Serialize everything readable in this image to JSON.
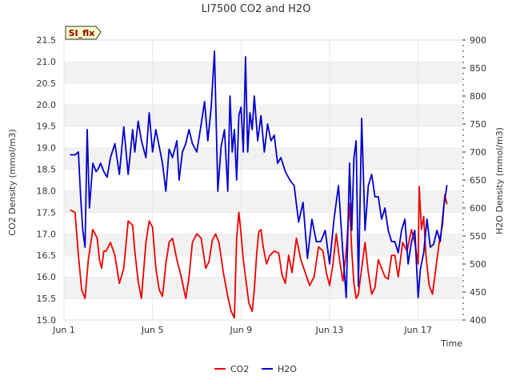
{
  "chart_data": {
    "type": "line",
    "title": "LI7500 CO2 and H2O",
    "xlabel": "Time",
    "ylabel": "CO2 Density (mmol/m3)",
    "y2label": "H2O Density (mmol/m3)",
    "badge": "SI_flx",
    "x_range": [
      0.0,
      18.0
    ],
    "x_ticks": [
      {
        "value": 0.0,
        "label": "Jun 1"
      },
      {
        "value": 4.0,
        "label": "Jun 5"
      },
      {
        "value": 8.0,
        "label": "Jun 9"
      },
      {
        "value": 12.0,
        "label": "Jun 13"
      },
      {
        "value": 16.0,
        "label": "Jun 17"
      }
    ],
    "ylim": [
      15.0,
      21.5
    ],
    "y_ticks": [
      "15.0",
      "15.5",
      "16.0",
      "16.5",
      "17.0",
      "17.5",
      "18.0",
      "18.5",
      "19.0",
      "19.5",
      "20.0",
      "20.5",
      "21.0",
      "21.5"
    ],
    "y2lim": [
      400,
      900
    ],
    "y2_ticks": [
      "400",
      "450",
      "500",
      "550",
      "600",
      "650",
      "700",
      "750",
      "800",
      "850",
      "900"
    ],
    "legend_position": "bottom-center",
    "series": [
      {
        "name": "CO2",
        "axis": "left",
        "color": "#ee0000",
        "x": [
          0.3,
          0.5,
          0.65,
          0.8,
          0.95,
          1.1,
          1.3,
          1.5,
          1.6,
          1.7,
          1.8,
          1.9,
          2.1,
          2.3,
          2.5,
          2.7,
          2.9,
          3.1,
          3.2,
          3.35,
          3.5,
          3.7,
          3.85,
          4.0,
          4.15,
          4.3,
          4.45,
          4.6,
          4.75,
          4.9,
          5.1,
          5.3,
          5.5,
          5.65,
          5.8,
          6.0,
          6.2,
          6.4,
          6.55,
          6.7,
          6.85,
          7.0,
          7.2,
          7.4,
          7.55,
          7.7,
          7.8,
          7.9,
          8.0,
          8.1,
          8.2,
          8.35,
          8.5,
          8.6,
          8.7,
          8.8,
          8.9,
          9.0,
          9.15,
          9.3,
          9.5,
          9.7,
          9.85,
          10.0,
          10.15,
          10.3,
          10.5,
          10.7,
          10.9,
          11.1,
          11.3,
          11.5,
          11.7,
          11.85,
          12.0,
          12.15,
          12.3,
          12.45,
          12.6,
          12.75,
          12.9,
          13.0,
          13.1,
          13.2,
          13.3,
          13.45,
          13.6,
          13.75,
          13.9,
          14.05,
          14.2,
          14.35,
          14.5,
          14.65,
          14.8,
          14.95,
          15.1,
          15.3,
          15.5,
          15.7,
          15.85,
          16.0,
          16.05,
          16.15,
          16.25,
          16.35,
          16.5,
          16.65,
          16.8,
          16.95,
          17.1,
          17.2,
          17.3
        ],
        "values": [
          17.55,
          17.5,
          16.5,
          15.7,
          15.5,
          16.4,
          17.1,
          16.9,
          16.4,
          16.2,
          16.6,
          16.6,
          16.8,
          16.5,
          15.85,
          16.2,
          17.3,
          17.2,
          16.6,
          15.9,
          15.5,
          16.8,
          17.3,
          17.15,
          16.2,
          15.7,
          15.55,
          16.3,
          16.8,
          16.9,
          16.4,
          16.0,
          15.5,
          16.0,
          16.8,
          17.0,
          16.9,
          16.2,
          16.35,
          16.85,
          17.0,
          16.8,
          16.1,
          15.55,
          15.2,
          15.05,
          16.9,
          17.5,
          17.0,
          16.4,
          16.0,
          15.4,
          15.2,
          15.7,
          16.5,
          17.05,
          17.1,
          16.7,
          16.3,
          16.5,
          16.6,
          16.55,
          16.05,
          15.85,
          16.5,
          16.1,
          16.9,
          16.4,
          16.1,
          15.8,
          16.0,
          16.7,
          16.6,
          16.1,
          15.8,
          16.3,
          17.0,
          16.4,
          15.9,
          16.6,
          17.7,
          16.6,
          15.85,
          15.5,
          15.6,
          16.2,
          16.8,
          16.1,
          15.6,
          15.75,
          16.4,
          16.2,
          16.0,
          15.95,
          16.5,
          16.5,
          16.0,
          16.8,
          16.6,
          17.1,
          16.8,
          16.3,
          18.1,
          17.1,
          17.4,
          16.5,
          15.8,
          15.6,
          16.2,
          16.8,
          17.2,
          17.9,
          17.7
        ]
      },
      {
        "name": "H2O",
        "axis": "right",
        "color": "#0000cc",
        "x": [
          0.3,
          0.5,
          0.65,
          0.75,
          0.85,
          0.95,
          1.05,
          1.15,
          1.3,
          1.45,
          1.55,
          1.65,
          1.8,
          1.95,
          2.1,
          2.3,
          2.5,
          2.7,
          2.9,
          3.1,
          3.2,
          3.35,
          3.5,
          3.7,
          3.85,
          4.0,
          4.15,
          4.3,
          4.45,
          4.6,
          4.75,
          4.9,
          5.1,
          5.2,
          5.35,
          5.5,
          5.65,
          5.8,
          6.0,
          6.2,
          6.35,
          6.5,
          6.65,
          6.8,
          6.95,
          7.1,
          7.25,
          7.4,
          7.5,
          7.6,
          7.7,
          7.8,
          7.9,
          8.0,
          8.1,
          8.2,
          8.3,
          8.4,
          8.5,
          8.6,
          8.75,
          8.9,
          9.05,
          9.2,
          9.35,
          9.5,
          9.65,
          9.8,
          10.0,
          10.2,
          10.4,
          10.6,
          10.8,
          11.0,
          11.2,
          11.4,
          11.6,
          11.8,
          12.0,
          12.2,
          12.4,
          12.6,
          12.75,
          12.9,
          13.0,
          13.1,
          13.2,
          13.3,
          13.45,
          13.6,
          13.75,
          13.9,
          14.05,
          14.2,
          14.35,
          14.5,
          14.65,
          14.8,
          14.95,
          15.1,
          15.25,
          15.4,
          15.55,
          15.7,
          15.85,
          16.0,
          16.1,
          16.25,
          16.4,
          16.55,
          16.7,
          16.85,
          17.0,
          17.15,
          17.3
        ],
        "values": [
          695,
          695,
          700,
          620,
          560,
          530,
          740,
          600,
          680,
          665,
          670,
          680,
          665,
          655,
          690,
          715,
          660,
          745,
          660,
          740,
          700,
          755,
          720,
          690,
          770,
          700,
          740,
          710,
          680,
          630,
          705,
          690,
          720,
          650,
          700,
          715,
          740,
          715,
          700,
          750,
          790,
          720,
          780,
          880,
          630,
          710,
          740,
          630,
          800,
          700,
          740,
          650,
          765,
          780,
          700,
          870,
          700,
          770,
          740,
          800,
          720,
          765,
          700,
          750,
          720,
          730,
          680,
          690,
          665,
          650,
          640,
          575,
          610,
          510,
          580,
          540,
          540,
          560,
          500,
          580,
          640,
          520,
          440,
          680,
          560,
          690,
          720,
          460,
          760,
          560,
          640,
          660,
          620,
          620,
          580,
          600,
          560,
          540,
          540,
          520,
          560,
          580,
          500,
          540,
          560,
          440,
          490,
          520,
          580,
          530,
          535,
          560,
          540,
          600,
          640
        ]
      }
    ]
  }
}
